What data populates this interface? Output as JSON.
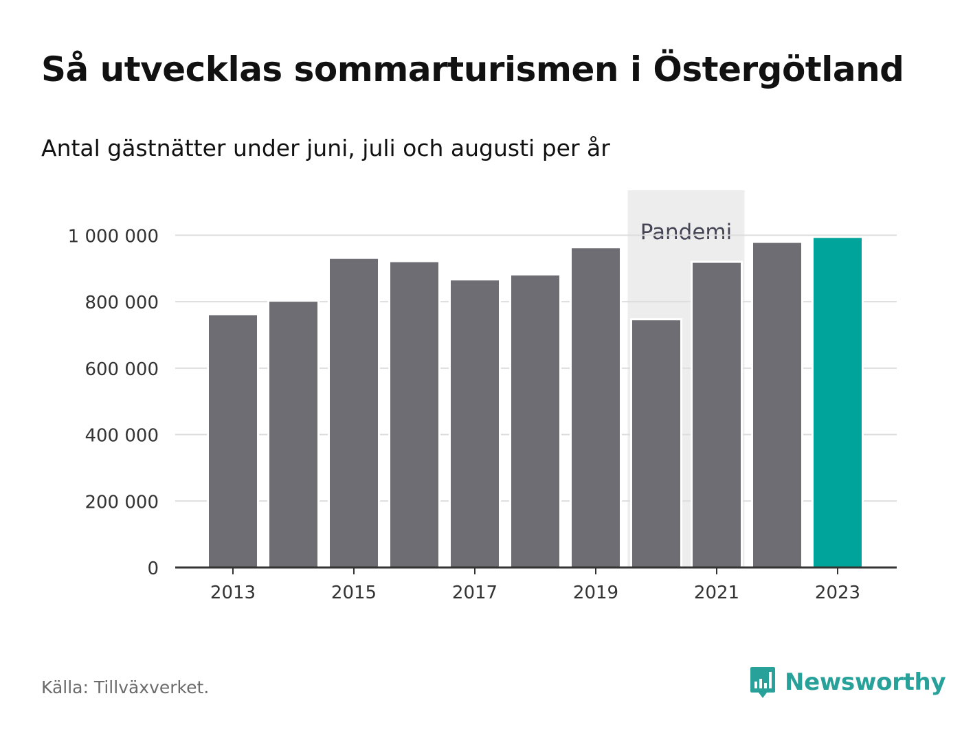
{
  "title": "Så utvecklas sommarturismen i Östergötland",
  "subtitle": "Antal gästnätter under juni, juli och augusti per år",
  "source": "Källa: Tillväxverket.",
  "brand": {
    "name": "Newsworthy",
    "icon": "newsworthy-logo-icon",
    "color": "#27a199"
  },
  "colors": {
    "bar": "#6e6d73",
    "highlight": "#00a49a",
    "band": "#ededed",
    "grid": "#dddddd",
    "axis": "#333333"
  },
  "chart_data": {
    "type": "bar",
    "categories": [
      "2013",
      "2014",
      "2015",
      "2016",
      "2017",
      "2018",
      "2019",
      "2020",
      "2021",
      "2022",
      "2023"
    ],
    "values": [
      762000,
      803000,
      932000,
      922000,
      867000,
      882000,
      964000,
      747000,
      920000,
      980000,
      995000
    ],
    "highlight_index": 10,
    "ylim": [
      0,
      1100000
    ],
    "yticks": [
      0,
      200000,
      400000,
      600000,
      800000,
      1000000
    ],
    "ytick_labels": [
      "0",
      "200 000",
      "400 000",
      "600 000",
      "800 000",
      "1 000 000"
    ],
    "xtick_labels": [
      "2013",
      "2015",
      "2017",
      "2019",
      "2021",
      "2023"
    ],
    "grid": true,
    "annotation": {
      "label": "Pandemi",
      "from": "2020",
      "to": "2021"
    }
  }
}
